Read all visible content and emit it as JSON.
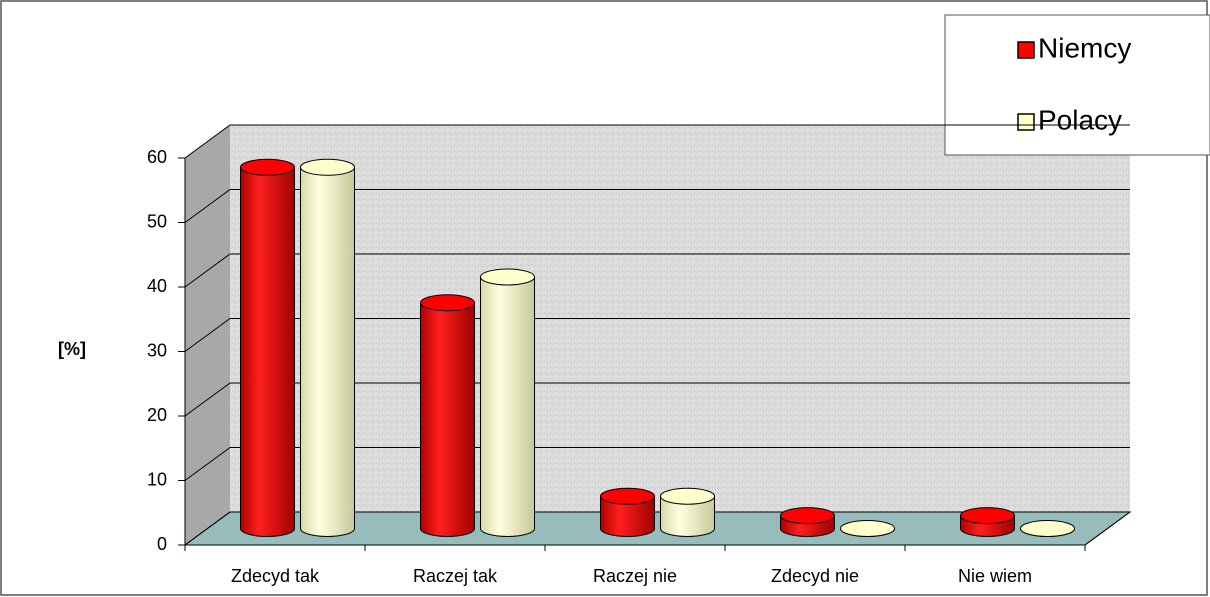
{
  "chart_data": {
    "type": "bar3d",
    "categories": [
      "Zdecyd tak",
      "Raczej tak",
      "Raczej nie",
      "Zdecyd nie",
      "Nie wiem"
    ],
    "series": [
      {
        "name": "Niemcy",
        "color": "#ff0000",
        "values": [
          56,
          35,
          5,
          2,
          2
        ]
      },
      {
        "name": "Polacy",
        "color": "#ffffcc",
        "values": [
          56,
          39,
          5,
          0,
          0
        ]
      }
    ],
    "ylabel": "[%]",
    "ylim": [
      0,
      60
    ],
    "yticks": [
      0,
      10,
      20,
      30,
      40,
      50,
      60
    ],
    "grid": true,
    "legend": "top-right"
  }
}
